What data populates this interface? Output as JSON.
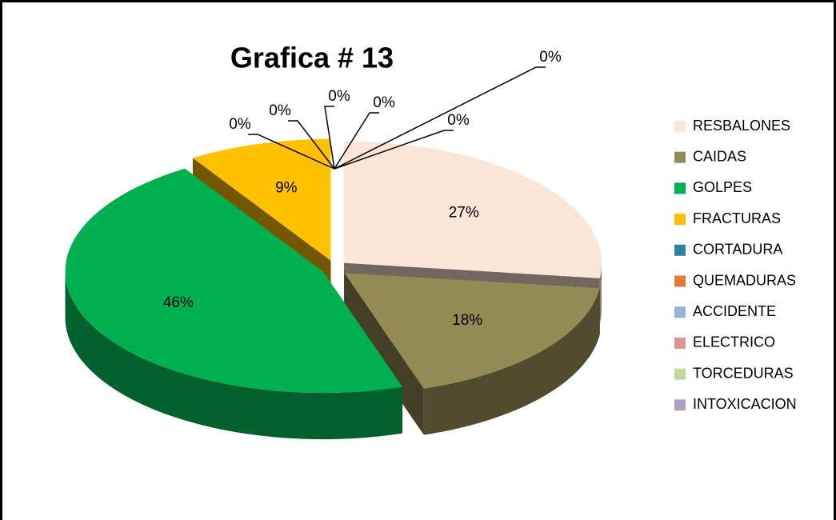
{
  "chart_data": {
    "type": "pie",
    "title": "Grafica # 13",
    "categories": [
      "RESBALONES",
      "CAIDAS",
      "GOLPES",
      "FRACTURAS",
      "CORTADURA",
      "QUEMADURAS",
      "ACCIDENTE",
      "ELECTRICO",
      "TORCEDURAS",
      "INTOXICACION"
    ],
    "values": [
      27,
      18,
      46,
      9,
      0,
      0,
      0,
      0,
      0,
      0
    ],
    "value_labels": [
      "27%",
      "18%",
      "46%",
      "9%",
      "0%",
      "0%",
      "0%",
      "0%",
      "0%",
      "0%"
    ],
    "colors": [
      "#fbe5d6",
      "#948a54",
      "#00b050",
      "#ffc000",
      "#31859c",
      "#e07b39",
      "#95b3d7",
      "#d99694",
      "#c3d69b",
      "#b2a1c7"
    ],
    "legend": "right"
  }
}
